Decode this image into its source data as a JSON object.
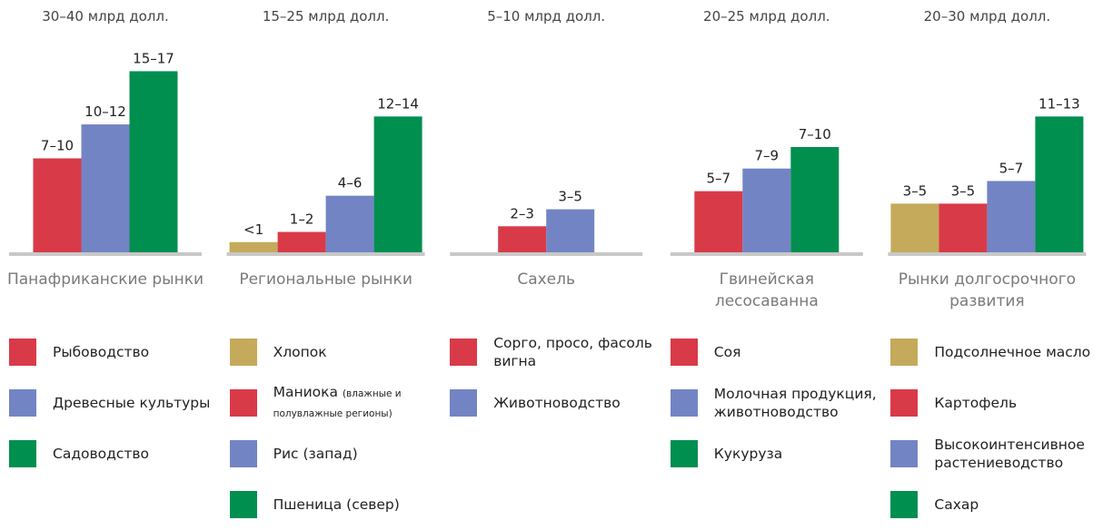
{
  "chart_data": [
    {
      "type": "bar",
      "subtitle": "30–40 млрд долл.",
      "title": "Панафриканские рынки",
      "categories": [
        "Рыбоводство",
        "Древесные культуры",
        "Садоводство"
      ],
      "colors": [
        "#d93a48",
        "#7384c4",
        "#008f4f"
      ],
      "values": [
        8.3,
        11.3,
        16
      ],
      "value_labels": [
        "7–10",
        "10–12",
        "15–17"
      ],
      "ylim": [
        0,
        17
      ]
    },
    {
      "type": "bar",
      "subtitle": "15–25 млрд долл.",
      "title": "Региональные рынки",
      "categories": [
        "Хлопок",
        "Маниока (влажные и полувлажные регионы)",
        "Рис (запад)",
        "Пшеница (север)"
      ],
      "colors": [
        "#c4aa5a",
        "#d93a48",
        "#7384c4",
        "#008f4f"
      ],
      "values": [
        0.9,
        1.8,
        5,
        12
      ],
      "value_labels": [
        "<1",
        "1–2",
        "4–6",
        "12–14"
      ],
      "ylim": [
        0,
        17
      ]
    },
    {
      "type": "bar",
      "subtitle": "5–10 млрд долл.",
      "title": "Сахель",
      "categories": [
        "Сорго, просо, фасоль вигна",
        "Животноводство"
      ],
      "colors": [
        "#d93a48",
        "#7384c4"
      ],
      "values": [
        2.3,
        3.8
      ],
      "value_labels": [
        "2–3",
        "3–5"
      ],
      "ylim": [
        0,
        17
      ]
    },
    {
      "type": "bar",
      "subtitle": "20–25 млрд долл.",
      "title": "Гвинейская лесосаванна",
      "categories": [
        "Соя",
        "Молочная продукция, животноводство",
        "Кукуруза"
      ],
      "colors": [
        "#d93a48",
        "#7384c4",
        "#008f4f"
      ],
      "values": [
        5.4,
        7.4,
        9.3
      ],
      "value_labels": [
        "5–7",
        "7–9",
        "7–10"
      ],
      "ylim": [
        0,
        17
      ]
    },
    {
      "type": "bar",
      "subtitle": "20–30 млрд долл.",
      "title": "Рынки долгосрочного развития",
      "categories": [
        "Подсолнечное масло",
        "Картофель",
        "Высокоинтенсивное растениеводство",
        "Сахар"
      ],
      "colors": [
        "#c4aa5a",
        "#d93a48",
        "#7384c4",
        "#008f4f"
      ],
      "values": [
        4.3,
        4.3,
        6.3,
        12
      ],
      "value_labels": [
        "3–5",
        "3–5",
        "5–7",
        "11–13"
      ],
      "ylim": [
        0,
        17
      ]
    }
  ]
}
